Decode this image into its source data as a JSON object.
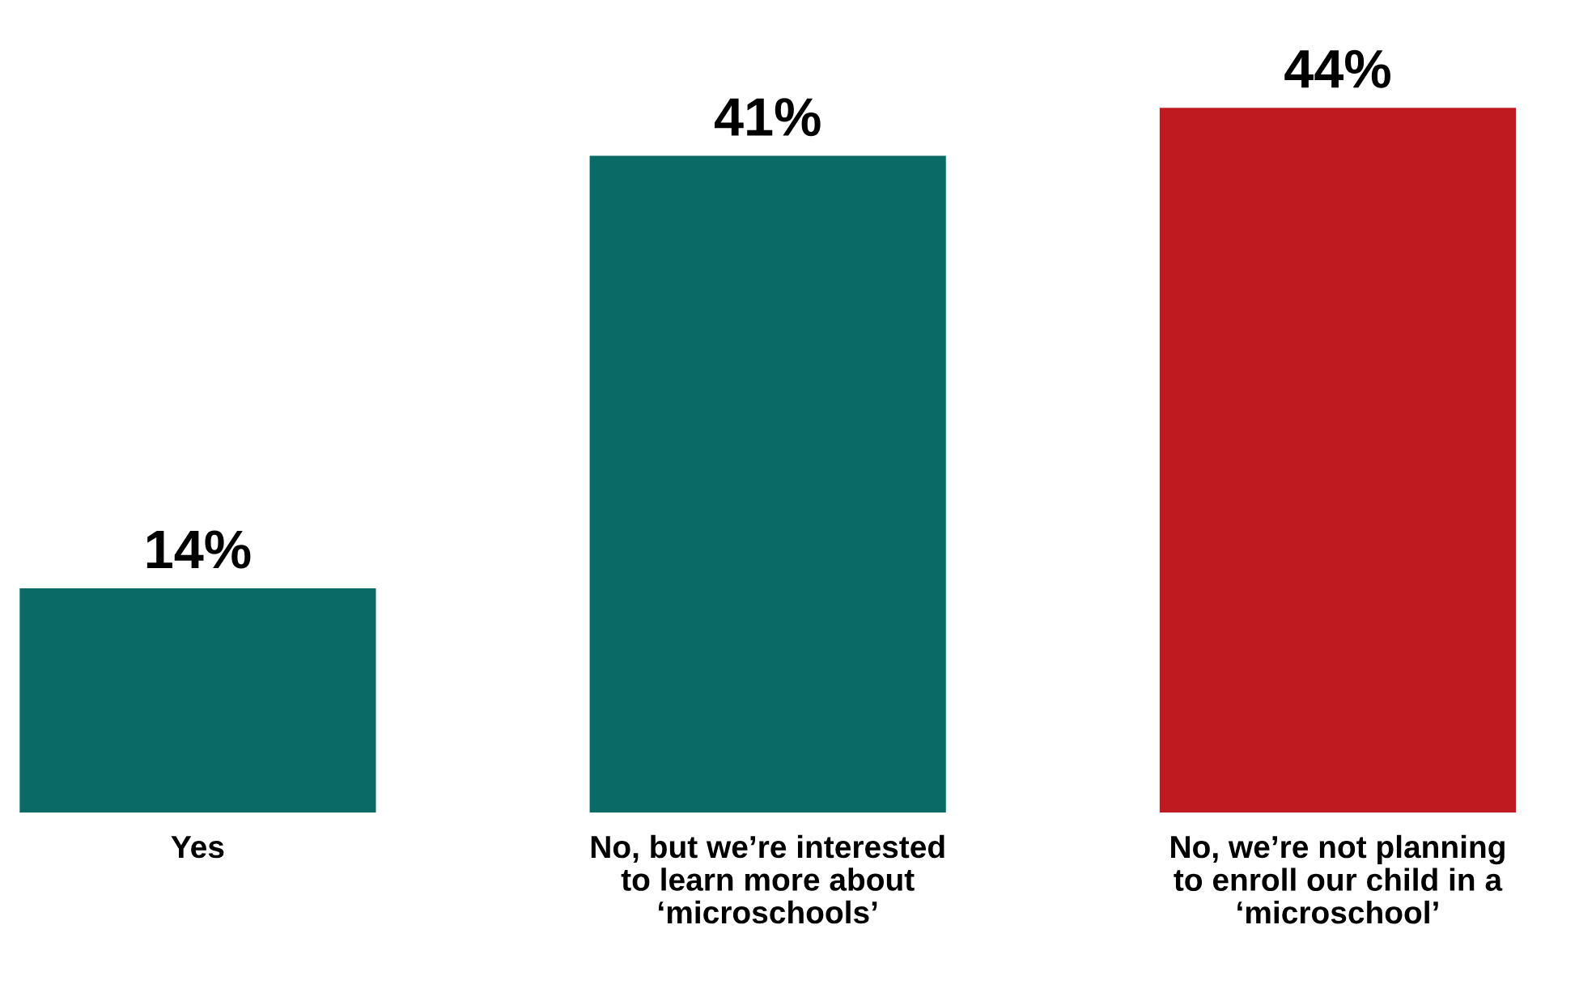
{
  "chart_data": {
    "type": "bar",
    "categories": [
      "Yes",
      "No, but we’re interested\nto learn more about\n‘microschools’",
      "No, we’re not planning\nto enroll our child in a\n‘microschool’"
    ],
    "values": [
      14,
      41,
      44
    ],
    "colors": [
      "#0a6b66",
      "#0a6b66",
      "#be1a1f"
    ],
    "value_labels": [
      "14%",
      "41%",
      "44%"
    ]
  }
}
